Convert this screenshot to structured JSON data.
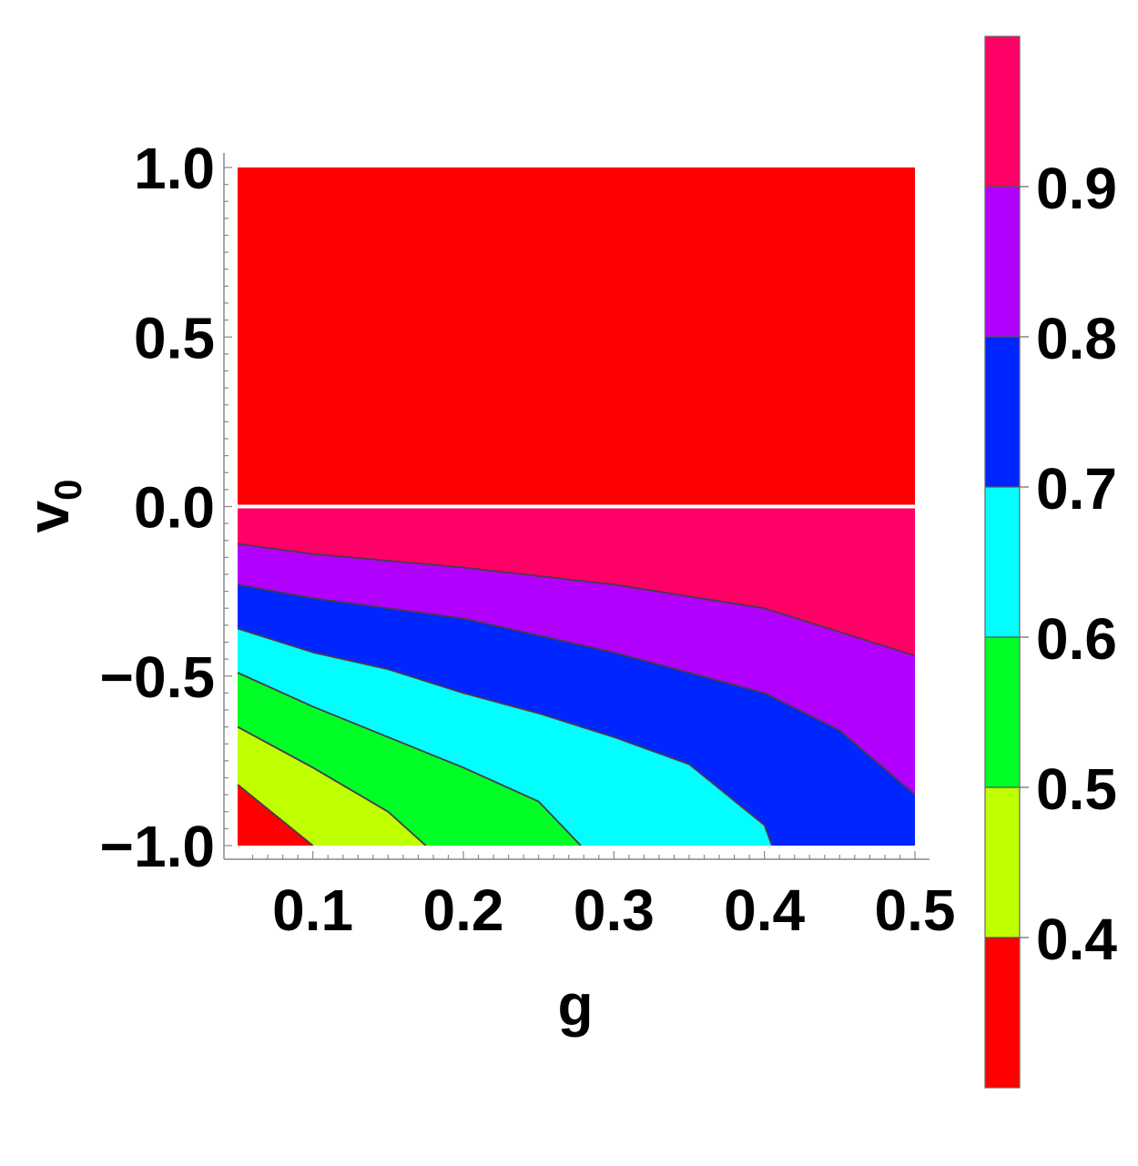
{
  "chart_data": {
    "type": "contour",
    "xlabel": "g",
    "ylabel": "v",
    "ylabel_subscript": "0",
    "xlim": [
      0.05,
      0.5
    ],
    "ylim": [
      -1.0,
      1.0
    ],
    "x_ticks": [
      0.1,
      0.2,
      0.3,
      0.4,
      0.5
    ],
    "x_tick_labels": [
      "0.1",
      "0.2",
      "0.3",
      "0.4",
      "0.5"
    ],
    "y_ticks": [
      1.0,
      0.5,
      0.0,
      -0.5,
      -1.0
    ],
    "y_tick_labels": [
      "1.0",
      "0.5",
      "0.0",
      "−0.5",
      "−1.0"
    ],
    "upper_region": {
      "v0_range": [
        0.0,
        1.0
      ],
      "color": "#ff0000"
    },
    "contour_levels": [
      0.4,
      0.5,
      0.6,
      0.7,
      0.8,
      0.9
    ],
    "contour_lines": [
      {
        "level": 0.4,
        "points": [
          [
            0.05,
            -0.82
          ],
          [
            0.1,
            -1.0
          ]
        ]
      },
      {
        "level": 0.5,
        "points": [
          [
            0.05,
            -0.65
          ],
          [
            0.1,
            -0.77
          ],
          [
            0.15,
            -0.9
          ],
          [
            0.175,
            -1.0
          ]
        ]
      },
      {
        "level": 0.6,
        "points": [
          [
            0.05,
            -0.49
          ],
          [
            0.1,
            -0.59
          ],
          [
            0.15,
            -0.68
          ],
          [
            0.2,
            -0.77
          ],
          [
            0.25,
            -0.87
          ],
          [
            0.278,
            -1.0
          ]
        ]
      },
      {
        "level": 0.7,
        "points": [
          [
            0.05,
            -0.36
          ],
          [
            0.1,
            -0.43
          ],
          [
            0.15,
            -0.48
          ],
          [
            0.2,
            -0.55
          ],
          [
            0.25,
            -0.61
          ],
          [
            0.3,
            -0.68
          ],
          [
            0.35,
            -0.76
          ],
          [
            0.4,
            -0.94
          ],
          [
            0.405,
            -1.0
          ]
        ]
      },
      {
        "level": 0.8,
        "points": [
          [
            0.05,
            -0.23
          ],
          [
            0.1,
            -0.27
          ],
          [
            0.2,
            -0.33
          ],
          [
            0.3,
            -0.43
          ],
          [
            0.4,
            -0.55
          ],
          [
            0.45,
            -0.66
          ],
          [
            0.5,
            -0.85
          ]
        ]
      },
      {
        "level": 0.9,
        "points": [
          [
            0.05,
            -0.11
          ],
          [
            0.1,
            -0.14
          ],
          [
            0.2,
            -0.18
          ],
          [
            0.3,
            -0.23
          ],
          [
            0.4,
            -0.3
          ],
          [
            0.5,
            -0.44
          ]
        ]
      }
    ],
    "band_colors": [
      "#ff0000",
      "#bfff00",
      "#00ff26",
      "#00ffff",
      "#0026ff",
      "#b200ff",
      "#ff0066"
    ],
    "colorbar": {
      "range": [
        0.3,
        1.0
      ],
      "ticks": [
        0.4,
        0.5,
        0.6,
        0.7,
        0.8,
        0.9
      ],
      "tick_labels": [
        "0.4",
        "0.5",
        "0.6",
        "0.7",
        "0.8",
        "0.9"
      ]
    }
  }
}
